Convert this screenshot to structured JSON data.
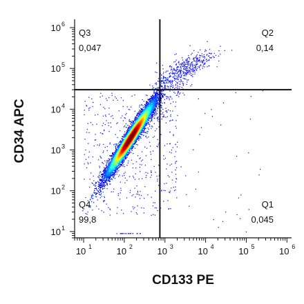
{
  "chart_data": {
    "type": "scatter",
    "subtype": "flow-cytometry density dot plot",
    "xlabel": "CD133 PE",
    "ylabel": "CD34 APC",
    "x_scale": "log",
    "y_scale": "log",
    "xlim": [
      6,
      1300000
    ],
    "ylim": [
      7,
      1600000
    ],
    "x_ticks": [
      {
        "base": "10",
        "exp": "1",
        "value": 10
      },
      {
        "base": "10",
        "exp": "2",
        "value": 100
      },
      {
        "base": "10",
        "exp": "3",
        "value": 1000
      },
      {
        "base": "10",
        "exp": "4",
        "value": 10000
      },
      {
        "base": "10",
        "exp": "5",
        "value": 100000
      },
      {
        "base": "10",
        "exp": "6",
        "value": 1000000
      }
    ],
    "y_ticks": [
      {
        "base": "10",
        "exp": "1",
        "value": 10
      },
      {
        "base": "10",
        "exp": "2",
        "value": 100
      },
      {
        "base": "10",
        "exp": "3",
        "value": 1000
      },
      {
        "base": "10",
        "exp": "4",
        "value": 10000
      },
      {
        "base": "10",
        "exp": "5",
        "value": 100000
      },
      {
        "base": "10",
        "exp": "6",
        "value": 1000000
      }
    ],
    "gates": {
      "x": 750,
      "y": 30000
    },
    "quadrants": [
      {
        "name": "Q3",
        "value": "0,047",
        "position": "top-left"
      },
      {
        "name": "Q2",
        "value": "0,14",
        "position": "top-right"
      },
      {
        "name": "Q4",
        "value": "99,8",
        "position": "bottom-left"
      },
      {
        "name": "Q1",
        "value": "0,045",
        "position": "bottom-right"
      }
    ],
    "populations": [
      {
        "description": "main dense cluster",
        "x_center": 140,
        "y_center": 2000,
        "color_scale": "jet density"
      },
      {
        "description": "double-positive tail",
        "x_center": 3000,
        "y_center": 100000
      }
    ],
    "grid": false,
    "legend": "none"
  }
}
